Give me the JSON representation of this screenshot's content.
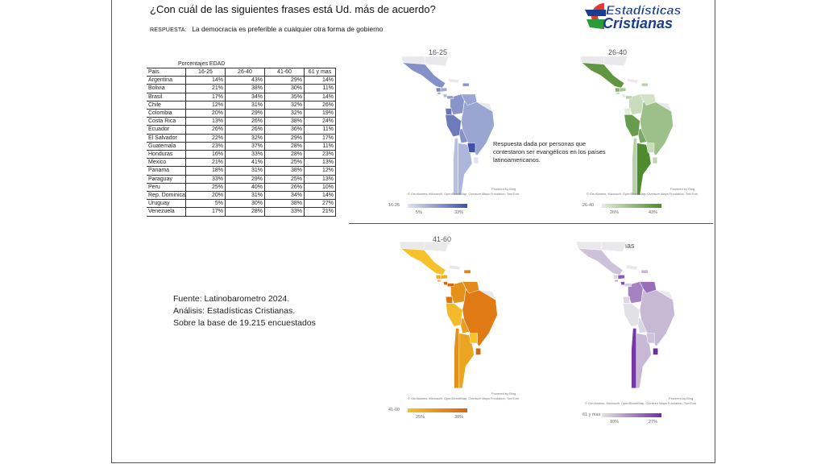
{
  "header": {
    "title": "¿Con cuál de las siguientes frases está Ud. más de acuerdo?",
    "respuesta_key": "RESPUESTA:",
    "respuesta_text": "La democracia es preferible a cualquier otra forma de gobierno",
    "logo_line1": "Estadísticas",
    "logo_line2": "Cristianas"
  },
  "table": {
    "caption": "Porcentajes EDAD",
    "columns": [
      "Pais",
      "16-25",
      "26-40",
      "41-60",
      "61 y mas"
    ],
    "rows": [
      [
        "Argentina",
        "14%",
        "43%",
        "29%",
        "14%"
      ],
      [
        "Bolivia",
        "21%",
        "38%",
        "30%",
        "11%"
      ],
      [
        "Brasil",
        "17%",
        "34%",
        "35%",
        "14%"
      ],
      [
        "Chile",
        "12%",
        "31%",
        "32%",
        "26%"
      ],
      [
        "Colombia",
        "20%",
        "29%",
        "32%",
        "19%"
      ],
      [
        "Costa Rica",
        "13%",
        "26%",
        "38%",
        "24%"
      ],
      [
        "Ecuador",
        "26%",
        "26%",
        "36%",
        "11%"
      ],
      [
        "El Salvador",
        "22%",
        "32%",
        "29%",
        "17%"
      ],
      [
        "Guatemala",
        "23%",
        "37%",
        "28%",
        "11%"
      ],
      [
        "Honduras",
        "16%",
        "33%",
        "28%",
        "23%"
      ],
      [
        "Mexico",
        "21%",
        "41%",
        "25%",
        "13%"
      ],
      [
        "Panama",
        "18%",
        "31%",
        "38%",
        "12%"
      ],
      [
        "Paraguay",
        "33%",
        "29%",
        "25%",
        "13%"
      ],
      [
        "Peru",
        "25%",
        "40%",
        "26%",
        "10%"
      ],
      [
        "Rep. Dominicana",
        "20%",
        "31%",
        "34%",
        "14%"
      ],
      [
        "Uruguay",
        "5%",
        "30%",
        "38%",
        "27%"
      ],
      [
        "Venezuela",
        "17%",
        "28%",
        "33%",
        "21%"
      ]
    ]
  },
  "note": "Respuesta dada por personas que contestaron ser evangélicos en los países latinoamericanos.",
  "source": {
    "line1": "Fuente: Latinobarometro 2024.",
    "line2": "Análisis: Estadísticas Cristianas.",
    "line3": "Sobre la base de 19.215 encuestados"
  },
  "map_credit": "© GeoNames, Microsoft, OpenStreetMap, Overture Maps Fundation, TomTom",
  "map_powered": "Powered by Bing",
  "chart_data": {
    "type": "map",
    "categories": [
      "Argentina",
      "Bolivia",
      "Brasil",
      "Chile",
      "Colombia",
      "Costa Rica",
      "Ecuador",
      "El Salvador",
      "Guatemala",
      "Honduras",
      "Mexico",
      "Panama",
      "Paraguay",
      "Peru",
      "Rep. Dominicana",
      "Uruguay",
      "Venezuela"
    ],
    "series": [
      {
        "name": "16-25",
        "min_label": "5%",
        "max_label": "33%",
        "min": 5,
        "max": 33,
        "color_low": "#dfe4f2",
        "color_high": "#3f51a8",
        "values": [
          14,
          21,
          17,
          12,
          20,
          13,
          26,
          22,
          23,
          16,
          21,
          18,
          33,
          25,
          20,
          5,
          17
        ]
      },
      {
        "name": "26-40",
        "min_label": "26%",
        "max_label": "43%",
        "min": 26,
        "max": 43,
        "color_low": "#e3eedb",
        "color_high": "#4e8a2e",
        "values": [
          43,
          38,
          34,
          31,
          29,
          26,
          26,
          32,
          37,
          33,
          41,
          31,
          29,
          40,
          31,
          30,
          28
        ]
      },
      {
        "name": "41-60",
        "min_label": "25%",
        "max_label": "38%",
        "min": 25,
        "max": 38,
        "color_low": "#f5c22b",
        "color_high": "#d9650f",
        "values": [
          29,
          30,
          35,
          32,
          32,
          38,
          36,
          29,
          28,
          28,
          25,
          38,
          25,
          26,
          34,
          38,
          33
        ]
      },
      {
        "name": "61 y mas",
        "min_label": "10%",
        "max_label": "27%",
        "min": 10,
        "max": 27,
        "color_low": "#e2e2e6",
        "color_high": "#6f2ea0",
        "values": [
          14,
          11,
          14,
          26,
          19,
          24,
          11,
          17,
          11,
          23,
          13,
          12,
          13,
          10,
          14,
          27,
          21
        ]
      }
    ]
  }
}
